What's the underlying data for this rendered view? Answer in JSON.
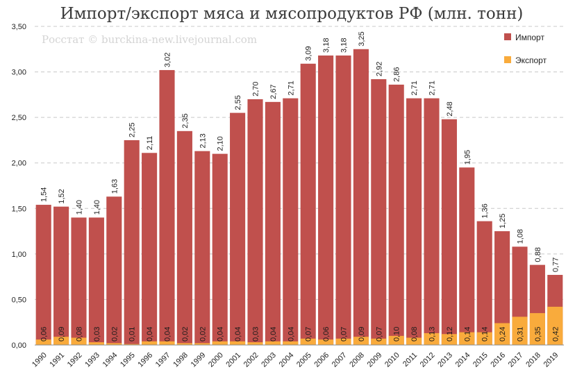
{
  "chart_data": {
    "type": "bar",
    "stacked": true,
    "title": "Импорт/экспорт мяса и мясопродуктов РФ  (млн. тонн)",
    "watermark": "Росстат © burckina-new.livejournal.com",
    "ylim": [
      0,
      3.5
    ],
    "yticks": [
      "0,00",
      "0,50",
      "1,00",
      "1,50",
      "2,00",
      "2,50",
      "3,00",
      "3,50"
    ],
    "grid": true,
    "legend_position": "top-right",
    "categories": [
      "1990",
      "1991",
      "1992",
      "1993",
      "1994",
      "1995",
      "1996",
      "1997",
      "1998",
      "1999",
      "2000",
      "2001",
      "2002",
      "2003",
      "2004",
      "2005",
      "2006",
      "2007",
      "2008",
      "2009",
      "2010",
      "2011",
      "2012",
      "2013",
      "2014",
      "2015",
      "2016",
      "2017",
      "2018",
      "2019"
    ],
    "series": [
      {
        "name": "Импорт",
        "color": "#c0504d",
        "values": [
          1.54,
          1.52,
          1.4,
          1.4,
          1.63,
          2.25,
          2.11,
          3.02,
          2.35,
          2.13,
          2.1,
          2.55,
          2.7,
          2.67,
          2.71,
          3.09,
          3.18,
          3.18,
          3.25,
          2.92,
          2.86,
          2.71,
          2.71,
          2.48,
          1.95,
          1.36,
          1.25,
          1.08,
          0.88,
          0.77
        ],
        "labels": [
          "1,54",
          "1,52",
          "1,40",
          "1,40",
          "1,63",
          "2,25",
          "2,11",
          "3,02",
          "2,35",
          "2,13",
          "2,10",
          "2,55",
          "2,70",
          "2,67",
          "2,71",
          "3,09",
          "3,18",
          "3,18",
          "3,25",
          "2,92",
          "2,86",
          "2,71",
          "2,71",
          "2,48",
          "1,95",
          "1,36",
          "1,25",
          "1,08",
          "0,88",
          "0,77"
        ]
      },
      {
        "name": "Экспорт",
        "color": "#f9ab3c",
        "values": [
          0.06,
          0.09,
          0.08,
          0.03,
          0.02,
          0.01,
          0.04,
          0.04,
          0.02,
          0.02,
          0.04,
          0.04,
          0.03,
          0.04,
          0.04,
          0.07,
          0.06,
          0.07,
          0.09,
          0.07,
          0.1,
          0.08,
          0.13,
          0.12,
          0.14,
          0.14,
          0.24,
          0.31,
          0.35,
          0.42
        ],
        "labels": [
          "0,06",
          "0,09",
          "0,08",
          "0,03",
          "0,02",
          "0,01",
          "0,04",
          "0,04",
          "0,02",
          "0,02",
          "0,04",
          "0,04",
          "0,03",
          "0,04",
          "0,04",
          "0,07",
          "0,06",
          "0,07",
          "0,09",
          "0,07",
          "0,10",
          "0,08",
          "0,13",
          "0,12",
          "0,14",
          "0,14",
          "0,24",
          "0,31",
          "0,35",
          "0,42"
        ]
      }
    ]
  }
}
